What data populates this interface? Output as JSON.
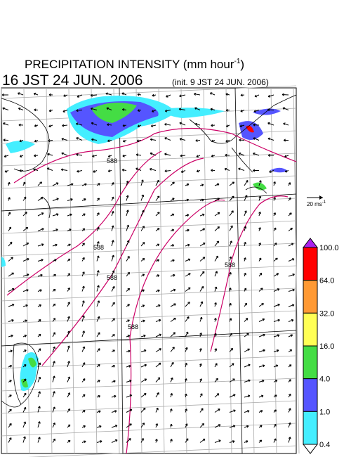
{
  "title": {
    "text": "PRECIPITATION INTENSITY (mm hour",
    "exponent": "-1",
    "close": ")"
  },
  "valid_time": "16 JST 24 JUN. 2006",
  "init_time": "(init. 9 JST 24 JUN. 2006)",
  "vector_scale": {
    "text": "20 ms",
    "exponent": "-1"
  },
  "colorbar": {
    "levels": [
      "100.0",
      "64.0",
      "32.0",
      "16.0",
      "4.0",
      "1.0",
      "0.4"
    ],
    "colors": [
      "#ff0000",
      "#ff9933",
      "#ffff55",
      "#44dd44",
      "#5555ff",
      "#44eeff"
    ],
    "over_color": "#aa22ee",
    "under_color": "#ffffff"
  },
  "contour_labels": [
    "588",
    "588",
    "588",
    "588",
    "588"
  ]
}
